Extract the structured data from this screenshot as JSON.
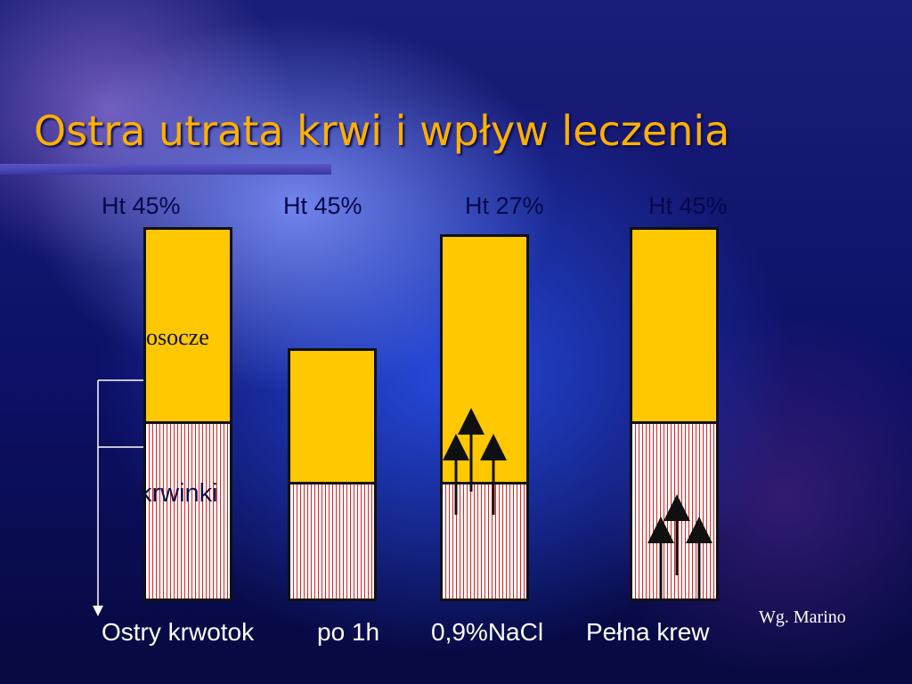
{
  "title": "Ostra utrata krwi i wpływ leczenia",
  "columns": [
    {
      "ht": "Ht 45%",
      "caption": "Ostry krwotok"
    },
    {
      "ht": "Ht 45%",
      "caption": "po 1h"
    },
    {
      "ht": "Ht 27%",
      "caption": "0,9%NaCl"
    },
    {
      "ht": "Ht 45%",
      "caption": "Pełna krew"
    }
  ],
  "labels": {
    "plasma": "osocze",
    "cells": "krwinki"
  },
  "source": "Wg. Marino",
  "colors": {
    "title": "#ffb000",
    "plasma": "#ffc800",
    "cells": "#e0201c"
  }
}
